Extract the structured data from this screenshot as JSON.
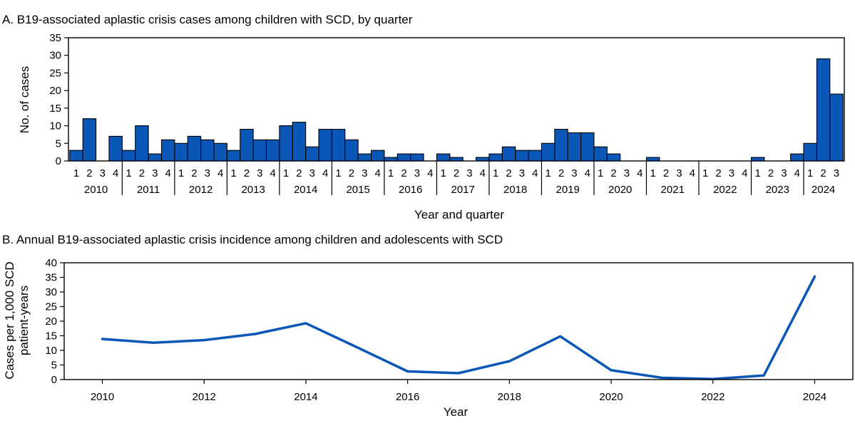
{
  "chart_data": [
    {
      "type": "bar",
      "title": "A. B19-associated aplastic crisis cases among children with SCD, by quarter",
      "xlabel": "Year and quarter",
      "ylabel": "No. of cases",
      "ylim": [
        0,
        35
      ],
      "yticks": [
        0,
        5,
        10,
        15,
        20,
        25,
        30,
        35
      ],
      "years": [
        "2010",
        "2011",
        "2012",
        "2013",
        "2014",
        "2015",
        "2016",
        "2017",
        "2018",
        "2019",
        "2020",
        "2021",
        "2022",
        "2023",
        "2024"
      ],
      "quarters": [
        "1",
        "2",
        "3",
        "4"
      ],
      "values": [
        3,
        12,
        0,
        7,
        3,
        10,
        2,
        6,
        5,
        7,
        6,
        5,
        3,
        9,
        6,
        6,
        10,
        11,
        4,
        9,
        9,
        6,
        2,
        3,
        1,
        2,
        2,
        0,
        2,
        1,
        0,
        1,
        2,
        4,
        3,
        3,
        5,
        9,
        8,
        8,
        4,
        2,
        0,
        0,
        1,
        0,
        0,
        0,
        0,
        0,
        0,
        0,
        1,
        0,
        0,
        2,
        5,
        29,
        19
      ],
      "bar_color": "#0a57b8"
    },
    {
      "type": "line",
      "title": "B. Annual B19-associated aplastic crisis incidence among children and adolescents with SCD",
      "xlabel": "Year",
      "ylabel_lines": [
        "Cases per 1,000 SCD",
        "patient-years"
      ],
      "ylim": [
        0,
        40
      ],
      "yticks": [
        0,
        5,
        10,
        15,
        20,
        25,
        30,
        35,
        40
      ],
      "xlim": [
        2009.25,
        2024.75
      ],
      "xticks": [
        2010,
        2012,
        2014,
        2016,
        2018,
        2020,
        2022,
        2024
      ],
      "x": [
        2010,
        2011,
        2012,
        2013,
        2014,
        2015,
        2016,
        2017,
        2018,
        2019,
        2020,
        2021,
        2022,
        2023,
        2024
      ],
      "y": [
        13.9,
        12.6,
        13.5,
        15.6,
        19.3,
        11.1,
        2.8,
        2.2,
        6.3,
        14.8,
        3.2,
        0.6,
        0.2,
        1.4,
        35.3
      ],
      "line_color": "#0a57b8"
    }
  ]
}
